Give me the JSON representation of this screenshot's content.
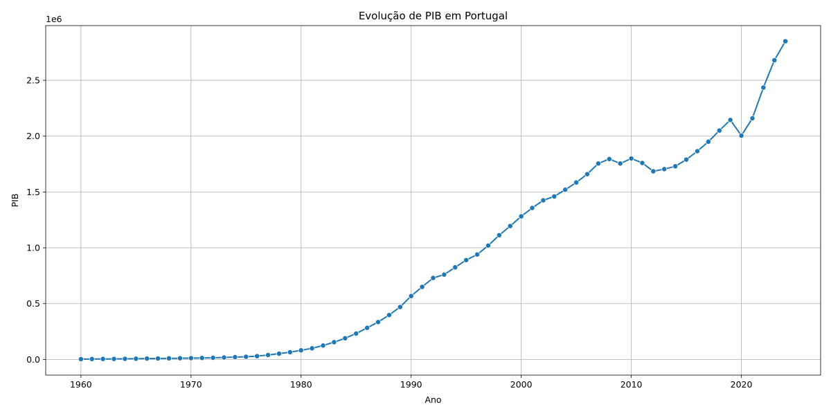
{
  "chart_data": {
    "type": "line",
    "title": "Evolução de PIB em Portugal",
    "xlabel": "Ano",
    "ylabel": "PIB",
    "y_offset_label": "1e6",
    "y_scale_factor": 1000000,
    "xlim": [
      1956.8,
      2027.2
    ],
    "ylim": [
      -140000,
      2990000
    ],
    "x_ticks": [
      1960,
      1970,
      1980,
      1990,
      2000,
      2010,
      2020
    ],
    "y_ticks": [
      0.0,
      0.5,
      1.0,
      1.5,
      2.0,
      2.5
    ],
    "y_tick_labels": [
      "0.0",
      "0.5",
      "1.0",
      "1.5",
      "2.0",
      "2.5"
    ],
    "grid": true,
    "line_color": "#1f77b4",
    "marker": "circle",
    "x": [
      1960,
      1961,
      1962,
      1963,
      1964,
      1965,
      1966,
      1967,
      1968,
      1969,
      1970,
      1971,
      1972,
      1973,
      1974,
      1975,
      1976,
      1977,
      1978,
      1979,
      1980,
      1981,
      1982,
      1983,
      1984,
      1985,
      1986,
      1987,
      1988,
      1989,
      1990,
      1991,
      1992,
      1993,
      1994,
      1995,
      1996,
      1997,
      1998,
      1999,
      2000,
      2001,
      2002,
      2003,
      2004,
      2005,
      2006,
      2007,
      2008,
      2009,
      2010,
      2011,
      2012,
      2013,
      2014,
      2015,
      2016,
      2017,
      2018,
      2019,
      2020,
      2021,
      2022,
      2023,
      2024
    ],
    "series": [
      {
        "values": [
          3000,
          4000,
          4500,
          5000,
          6000,
          7000,
          8000,
          9000,
          10000,
          11000,
          12000,
          13500,
          15000,
          18000,
          21000,
          24000,
          30000,
          40000,
          52000,
          65000,
          82000,
          100000,
          125000,
          155000,
          190000,
          232000,
          283000,
          335000,
          398000,
          470000,
          568000,
          650000,
          730000,
          760000,
          825000,
          890000,
          940000,
          1020000,
          1113000,
          1195000,
          1282000,
          1357000,
          1425000,
          1460000,
          1520000,
          1585000,
          1660000,
          1755000,
          1795000,
          1755000,
          1800000,
          1760000,
          1685000,
          1705000,
          1730000,
          1790000,
          1865000,
          1950000,
          2050000,
          2145000,
          2005000,
          2160000,
          2435000,
          2680000,
          2850000
        ]
      }
    ]
  }
}
